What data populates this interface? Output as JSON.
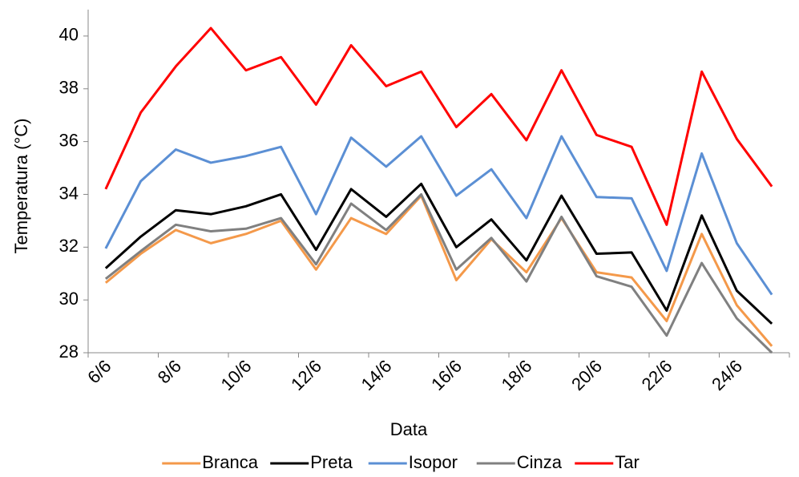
{
  "chart_data": {
    "type": "line",
    "x_label": "Data",
    "y_label": "Temperatura (°C)",
    "categories": [
      "6/6",
      null,
      "8/6",
      null,
      "10/6",
      null,
      "12/6",
      null,
      "14/6",
      null,
      "16/6",
      null,
      "18/6",
      null,
      "20/6",
      null,
      "22/6",
      null,
      "24/6",
      null
    ],
    "series": [
      {
        "name": "Branca",
        "color": "#f4994a",
        "values": [
          30.65,
          31.75,
          32.65,
          32.15,
          32.5,
          33.0,
          31.15,
          33.1,
          32.5,
          33.95,
          30.75,
          32.3,
          31.05,
          33.1,
          31.05,
          30.85,
          29.2,
          32.5,
          29.8,
          28.25
        ]
      },
      {
        "name": "Preta",
        "color": "#000000",
        "values": [
          31.2,
          32.4,
          33.4,
          33.25,
          33.55,
          34.0,
          31.9,
          34.2,
          33.15,
          34.4,
          32.0,
          33.05,
          31.5,
          33.95,
          31.75,
          31.8,
          29.6,
          33.2,
          30.35,
          29.1
        ]
      },
      {
        "name": "Isopor",
        "color": "#5b8fd4",
        "values": [
          31.95,
          34.5,
          35.7,
          35.2,
          35.45,
          35.8,
          33.25,
          36.15,
          35.05,
          36.2,
          33.95,
          34.95,
          33.1,
          36.2,
          33.9,
          33.85,
          31.1,
          35.55,
          32.15,
          30.2
        ]
      },
      {
        "name": "Cinza",
        "color": "#808080",
        "values": [
          30.8,
          31.85,
          32.85,
          32.6,
          32.7,
          33.1,
          31.35,
          33.65,
          32.65,
          34.0,
          31.15,
          32.35,
          30.7,
          33.15,
          30.9,
          30.5,
          28.65,
          31.4,
          29.3,
          28.0
        ]
      },
      {
        "name": "Tar",
        "color": "#ff0000",
        "values": [
          34.2,
          37.1,
          38.85,
          40.3,
          38.7,
          39.2,
          37.4,
          39.65,
          38.1,
          38.65,
          36.55,
          37.8,
          36.05,
          38.7,
          36.25,
          35.8,
          32.85,
          38.65,
          36.1,
          34.3
        ]
      }
    ],
    "ylim": [
      28,
      41
    ],
    "yticks": [
      28,
      30,
      32,
      34,
      36,
      38,
      40
    ],
    "grid": false,
    "legend": "bottom"
  }
}
